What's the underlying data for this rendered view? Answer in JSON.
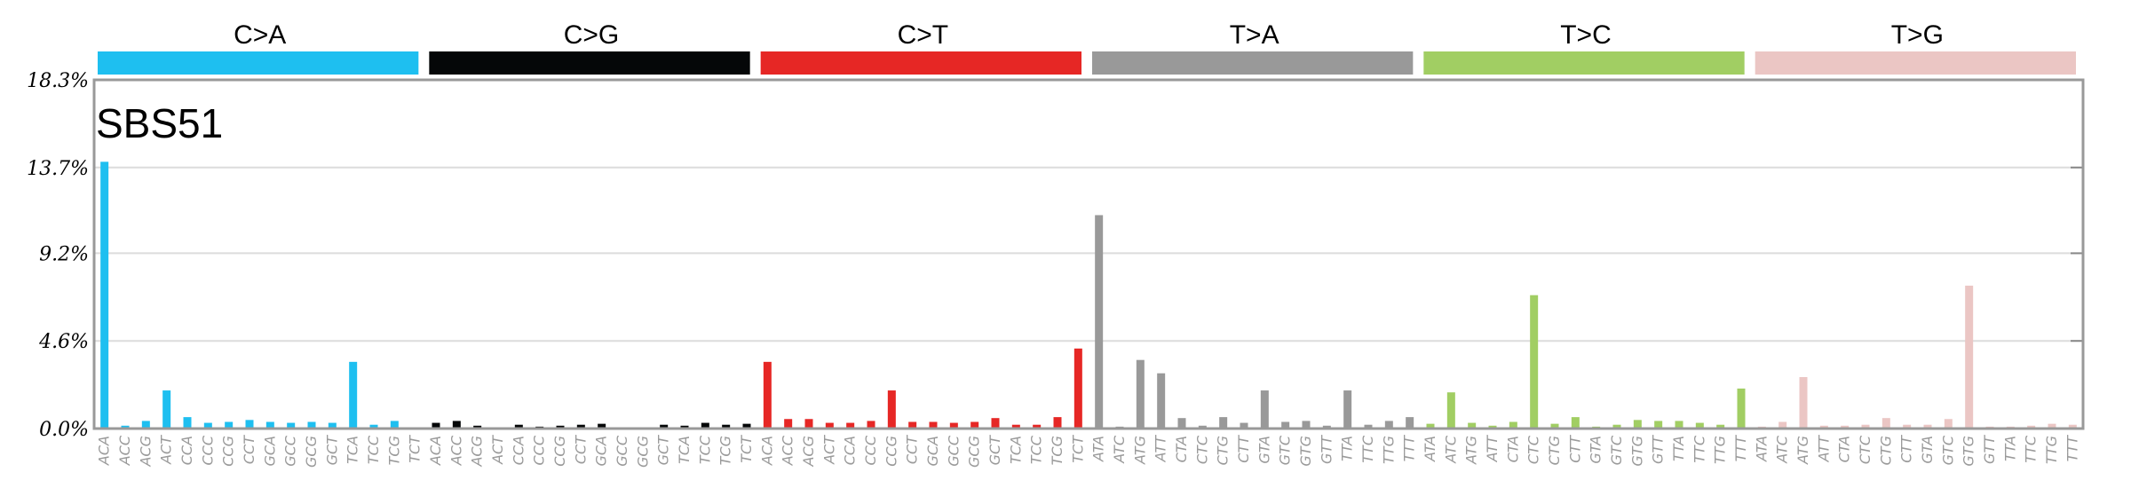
{
  "chart_data": {
    "type": "bar",
    "title": "SBS51",
    "xlabel": "",
    "ylabel": "",
    "ylim": [
      0,
      18.3
    ],
    "yticks": [
      "0.0%",
      "4.6%",
      "9.2%",
      "13.7%",
      "18.3%"
    ],
    "ytick_values": [
      0,
      4.6,
      9.2,
      13.7,
      18.3
    ],
    "grid": true,
    "groups": [
      {
        "name": "C>A",
        "color": "#1ebff0",
        "categories": [
          "ACA",
          "ACC",
          "ACG",
          "ACT",
          "CCA",
          "CCC",
          "CCG",
          "CCT",
          "GCA",
          "GCC",
          "GCG",
          "GCT",
          "TCA",
          "TCC",
          "TCG",
          "TCT"
        ],
        "values": [
          14.0,
          0.15,
          0.4,
          2.0,
          0.6,
          0.3,
          0.35,
          0.45,
          0.35,
          0.3,
          0.35,
          0.3,
          3.5,
          0.2,
          0.4,
          0.05
        ]
      },
      {
        "name": "C>G",
        "color": "#050708",
        "categories": [
          "ACA",
          "ACC",
          "ACG",
          "ACT",
          "CCA",
          "CCC",
          "CCG",
          "CCT",
          "GCA",
          "GCC",
          "GCG",
          "GCT",
          "TCA",
          "TCC",
          "TCG",
          "TCT"
        ],
        "values": [
          0.3,
          0.4,
          0.15,
          0.05,
          0.2,
          0.1,
          0.15,
          0.2,
          0.25,
          0.0,
          0.0,
          0.2,
          0.15,
          0.3,
          0.2,
          0.25
        ]
      },
      {
        "name": "C>T",
        "color": "#e62725",
        "categories": [
          "ACA",
          "ACC",
          "ACG",
          "ACT",
          "CCA",
          "CCC",
          "CCG",
          "CCT",
          "GCA",
          "GCC",
          "GCG",
          "GCT",
          "TCA",
          "TCC",
          "TCG",
          "TCT"
        ],
        "values": [
          3.5,
          0.5,
          0.5,
          0.3,
          0.3,
          0.4,
          2.0,
          0.35,
          0.35,
          0.3,
          0.35,
          0.55,
          0.2,
          0.2,
          0.6,
          4.2
        ]
      },
      {
        "name": "T>A",
        "color": "#999999",
        "categories": [
          "ATA",
          "ATC",
          "ATG",
          "ATT",
          "CTA",
          "CTC",
          "CTG",
          "CTT",
          "GTA",
          "GTC",
          "GTG",
          "GTT",
          "TTA",
          "TTC",
          "TTG",
          "TTT"
        ],
        "values": [
          11.2,
          0.1,
          3.6,
          2.9,
          0.55,
          0.15,
          0.6,
          0.3,
          2.0,
          0.35,
          0.4,
          0.15,
          2.0,
          0.2,
          0.4,
          0.6
        ]
      },
      {
        "name": "T>C",
        "color": "#a1ce63",
        "categories": [
          "ATA",
          "ATC",
          "ATG",
          "ATT",
          "CTA",
          "CTC",
          "CTG",
          "CTT",
          "GTA",
          "GTC",
          "GTG",
          "GTT",
          "TTA",
          "TTC",
          "TTG",
          "TTT"
        ],
        "values": [
          0.25,
          1.9,
          0.3,
          0.15,
          0.35,
          7.0,
          0.25,
          0.6,
          0.1,
          0.2,
          0.45,
          0.4,
          0.4,
          0.3,
          0.2,
          2.1
        ]
      },
      {
        "name": "T>G",
        "color": "#ebc6c4",
        "categories": [
          "ATA",
          "ATC",
          "ATG",
          "ATT",
          "CTA",
          "CTC",
          "CTG",
          "CTT",
          "GTA",
          "GTC",
          "GTG",
          "GTT",
          "TTA",
          "TTC",
          "TTG",
          "TTT"
        ],
        "values": [
          0.1,
          0.35,
          2.7,
          0.15,
          0.15,
          0.2,
          0.55,
          0.2,
          0.2,
          0.5,
          7.5,
          0.1,
          0.1,
          0.15,
          0.25,
          0.2
        ]
      }
    ]
  }
}
